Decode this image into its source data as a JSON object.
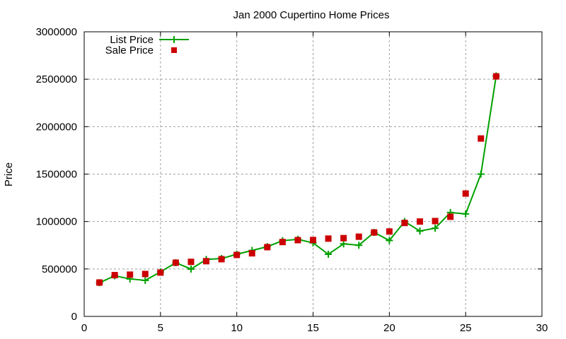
{
  "chart_data": {
    "type": "line",
    "title": "Jan 2000 Cupertino Home Prices",
    "xlabel": "",
    "ylabel": "Price",
    "xlim": [
      0,
      30
    ],
    "ylim": [
      0,
      3000000
    ],
    "x_ticks": [
      "0",
      "5",
      "10",
      "15",
      "20",
      "25",
      "30"
    ],
    "y_ticks": [
      "0",
      "500000",
      "1000000",
      "1500000",
      "2000000",
      "2500000",
      "3000000"
    ],
    "grid": true,
    "legend_position": "top-left",
    "x": [
      1,
      2,
      3,
      4,
      5,
      6,
      7,
      8,
      9,
      10,
      11,
      12,
      13,
      14,
      15,
      16,
      17,
      18,
      19,
      20,
      21,
      22,
      23,
      24,
      25,
      26,
      27
    ],
    "series": [
      {
        "name": "List Price",
        "style": "lines+points",
        "marker": "plus",
        "color": "#00a000",
        "values": [
          355000,
          428000,
          395000,
          380000,
          469000,
          566000,
          499000,
          600000,
          610000,
          655000,
          695000,
          735000,
          798000,
          812000,
          775000,
          655000,
          765000,
          750000,
          885000,
          800000,
          1000000,
          900000,
          930000,
          1095000,
          1080000,
          1500000,
          2535000
        ]
      },
      {
        "name": "Sale Price",
        "style": "points",
        "marker": "square",
        "color": "#cc0000",
        "values": [
          357000,
          435000,
          440000,
          447000,
          462000,
          566000,
          575000,
          582000,
          603000,
          648000,
          665000,
          730000,
          784000,
          804000,
          805000,
          820000,
          825000,
          840000,
          885000,
          895000,
          985000,
          1000000,
          1005000,
          1050000,
          1295000,
          1875000,
          2530000
        ]
      }
    ]
  }
}
